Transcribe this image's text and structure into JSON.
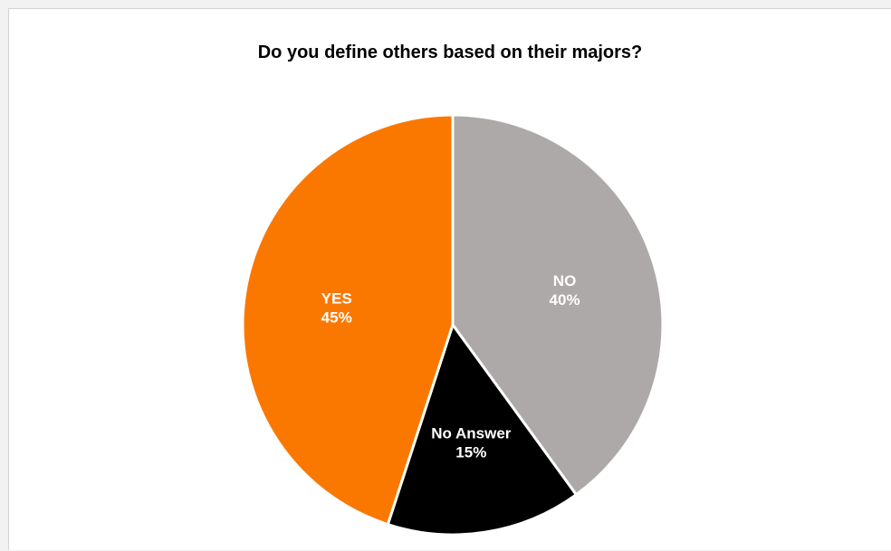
{
  "chart_data": {
    "type": "pie",
    "title": "Do you define others based on their majors?",
    "slices": [
      {
        "label": "NO",
        "value": 40,
        "value_text": "40%",
        "color": "#ada9a8"
      },
      {
        "label": "No Answer",
        "value": 15,
        "value_text": "15%",
        "color": "#000000"
      },
      {
        "label": "YES",
        "value": 45,
        "value_text": "45%",
        "color": "#fb7800"
      }
    ],
    "start_angle": "12 o'clock",
    "direction": "clockwise",
    "slice_border_color": "#ffffff",
    "legend": "none"
  }
}
